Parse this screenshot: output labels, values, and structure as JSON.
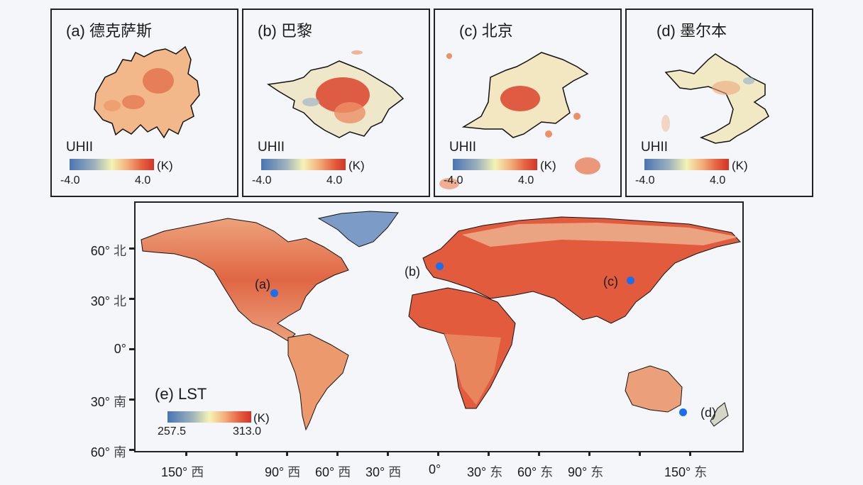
{
  "panels": [
    {
      "id": "a",
      "title": "(a) 德克萨斯",
      "legend_label": "UHII",
      "unit": "(K)",
      "min": "-4.0",
      "max": "4.0"
    },
    {
      "id": "b",
      "title": "(b) 巴黎",
      "legend_label": "UHII",
      "unit": "(K)",
      "min": "-4.0",
      "max": "4.0"
    },
    {
      "id": "c",
      "title": "(c) 北京",
      "legend_label": "UHII",
      "unit": "(K)",
      "min": "-4.0",
      "max": "4.0"
    },
    {
      "id": "d",
      "title": "(d) 墨尔本",
      "legend_label": "UHII",
      "unit": "(K)",
      "min": "-4.0",
      "max": "4.0"
    }
  ],
  "main_map": {
    "title": "(e) LST",
    "unit": "(K)",
    "min": "257.5",
    "max": "313.0",
    "markers": [
      "(a)",
      "(b)",
      "(c)",
      "(d)"
    ],
    "y_ticks": [
      {
        "deg": "60°",
        "dir": "北"
      },
      {
        "deg": "30°",
        "dir": "北"
      },
      {
        "deg": "0°",
        "dir": ""
      },
      {
        "deg": "30°",
        "dir": "南"
      },
      {
        "deg": "60°",
        "dir": "南"
      }
    ],
    "x_ticks": [
      {
        "deg": "150°",
        "dir": "西"
      },
      {
        "deg": "90°",
        "dir": "西"
      },
      {
        "deg": "60°",
        "dir": "西"
      },
      {
        "deg": "30°",
        "dir": "西"
      },
      {
        "deg": "0°",
        "dir": ""
      },
      {
        "deg": "30°",
        "dir": "东"
      },
      {
        "deg": "60°",
        "dir": "东"
      },
      {
        "deg": "90°",
        "dir": "东"
      },
      {
        "deg": "150°",
        "dir": "东"
      }
    ]
  },
  "colors": {
    "cold": "#4a74b4",
    "neutral": "#f4f3b4",
    "hot": "#d43427",
    "marker": "#1a6ef0",
    "background": "#f5f6fa"
  }
}
